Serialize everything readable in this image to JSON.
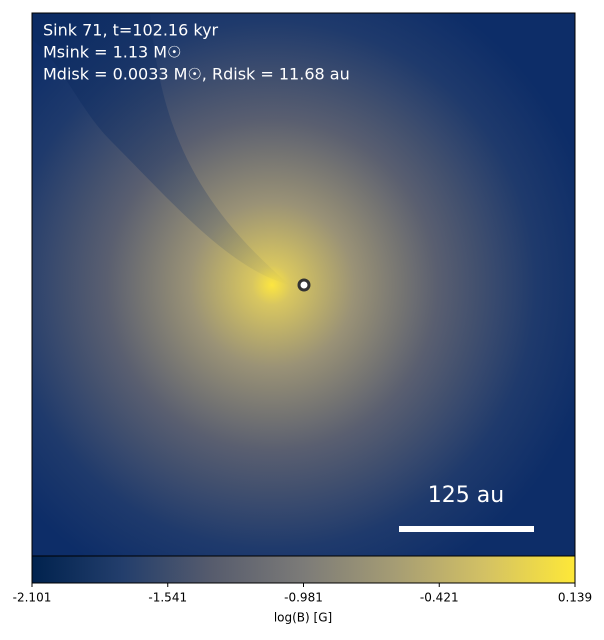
{
  "chart_data": {
    "type": "image",
    "annotations": [
      "Sink 71, t=102.16 kyr",
      "Msink = 1.13 M☉",
      "Mdisk = 0.0033 M☉, Rdisk = 11.68 au"
    ],
    "scale_bar_label": "125 au",
    "colorbar": {
      "label": "log(B) [G]",
      "colormap": "cividis",
      "lim": [
        -2.101,
        0.139
      ],
      "ticks": [
        -2.101,
        -1.541,
        -0.981,
        -0.421,
        0.139
      ]
    }
  }
}
